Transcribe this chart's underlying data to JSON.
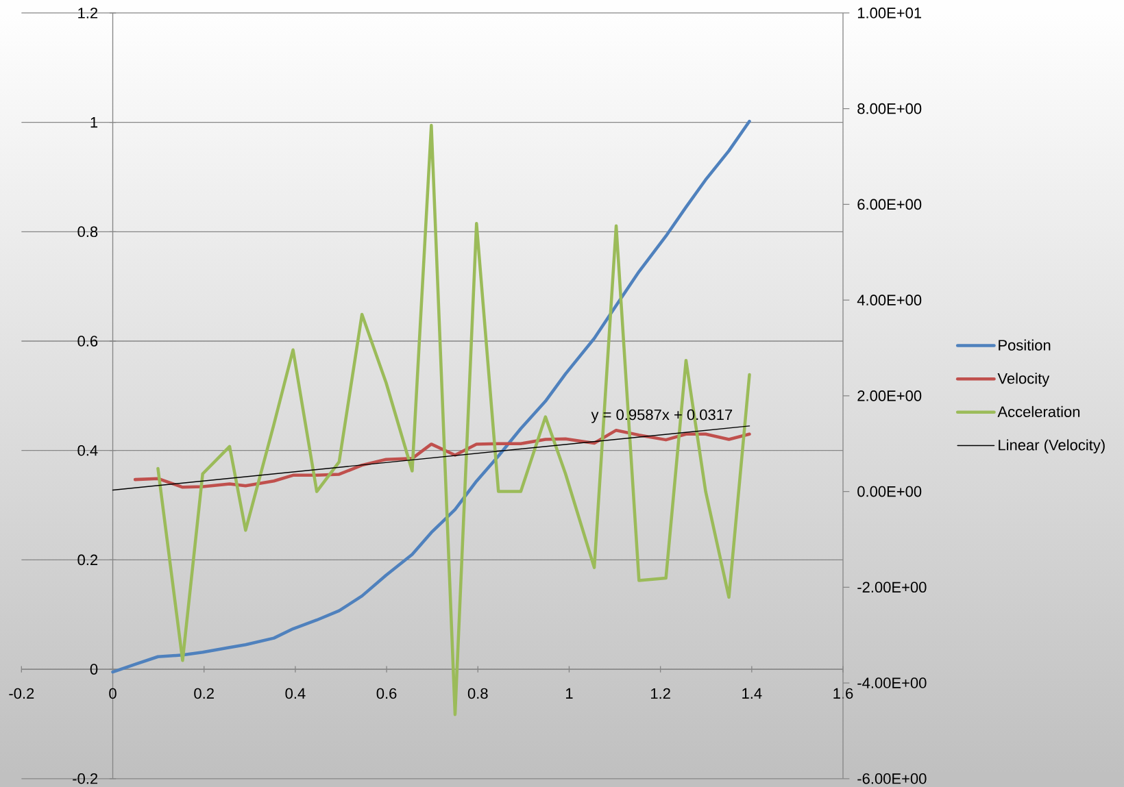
{
  "chart_data": {
    "type": "line",
    "annotations": [
      "y = 0.9587x + 0.0317"
    ],
    "x": [
      0,
      0.049,
      0.099,
      0.153,
      0.197,
      0.256,
      0.291,
      0.353,
      0.395,
      0.447,
      0.496,
      0.546,
      0.599,
      0.656,
      0.698,
      0.75,
      0.797,
      0.845,
      0.894,
      0.948,
      0.992,
      1.055,
      1.103,
      1.153,
      1.212,
      1.256,
      1.299,
      1.35,
      1.395
    ],
    "series": [
      {
        "name": "Position",
        "color": "#4f81bd",
        "values": [
          -0.005,
          0.009,
          0.023,
          0.026,
          0.031,
          0.04,
          0.045,
          0.057,
          0.074,
          0.09,
          0.107,
          0.134,
          0.172,
          0.21,
          0.25,
          0.292,
          0.344,
          0.39,
          0.44,
          0.49,
          0.54,
          0.605,
          0.665,
          0.727,
          0.792,
          0.845,
          0.895,
          0.948,
          1.002
        ]
      },
      {
        "name": "Velocity",
        "color": "#c0504d",
        "axis": "y2",
        "values": [
          null,
          0.25,
          0.27,
          0.09,
          0.1,
          0.16,
          0.12,
          0.22,
          0.34,
          0.34,
          0.36,
          0.55,
          0.67,
          0.69,
          0.99,
          0.76,
          0.99,
          1.0,
          1.0,
          1.09,
          1.1,
          1.01,
          1.28,
          1.18,
          1.08,
          1.2,
          1.2,
          1.09,
          1.2
        ]
      },
      {
        "name": "Acceleration",
        "color": "#9bbb59",
        "axis": "y2",
        "values": [
          null,
          null,
          0.48,
          -3.53,
          0.37,
          0.94,
          -0.81,
          1.4,
          2.96,
          0.0,
          0.62,
          3.7,
          2.27,
          0.43,
          7.65,
          -4.66,
          5.6,
          0.0,
          0.0,
          1.56,
          0.37,
          -1.59,
          5.55,
          -1.86,
          -1.81,
          2.74,
          0.0,
          -2.21,
          2.44
        ]
      },
      {
        "name": "Linear (Velocity)",
        "color": "#000000",
        "axis": "y2",
        "type": "line",
        "x": [
          0,
          1.395
        ],
        "values": [
          0.03,
          1.37
        ]
      }
    ],
    "xlim": [
      -0.2,
      1.6
    ],
    "xticks": [
      -0.2,
      0,
      0.2,
      0.4,
      0.6,
      0.8,
      1,
      1.2,
      1.4,
      1.6
    ],
    "ylim": [
      -0.2,
      1.2
    ],
    "yticks": [
      -0.2,
      0,
      0.2,
      0.4,
      0.6,
      0.8,
      1,
      1.2
    ],
    "y2lim": [
      -6,
      10
    ],
    "y2ticks": [
      {
        "value": -6,
        "label": "-6.00E+00"
      },
      {
        "value": -4,
        "label": "-4.00E+00"
      },
      {
        "value": -2,
        "label": "-2.00E+00"
      },
      {
        "value": 0,
        "label": "0.00E+00"
      },
      {
        "value": 2,
        "label": "2.00E+00"
      },
      {
        "value": 4,
        "label": "4.00E+00"
      },
      {
        "value": 6,
        "label": "6.00E+00"
      },
      {
        "value": 8,
        "label": "8.00E+00"
      },
      {
        "value": 10,
        "label": "1.00E+01"
      }
    ],
    "grid": "y",
    "legend": "right"
  }
}
